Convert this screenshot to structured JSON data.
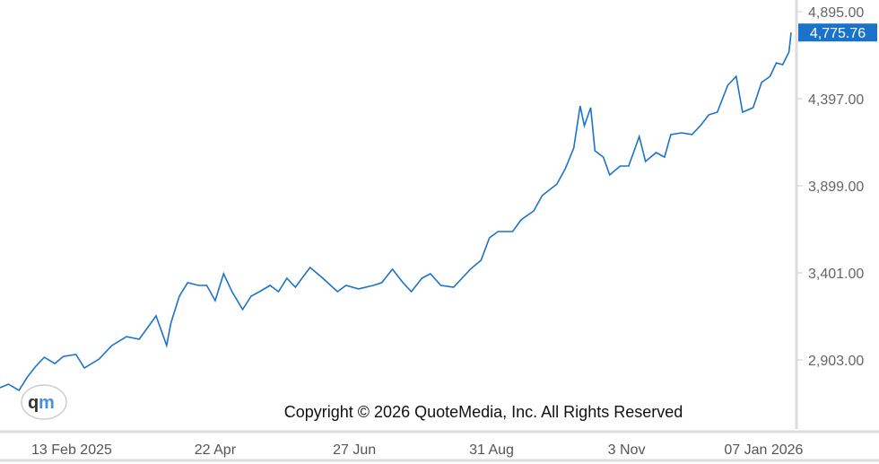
{
  "chart_data": {
    "type": "line",
    "title": "",
    "xlabel": "",
    "ylabel": "",
    "x_range": [
      "2025-01-10",
      "2026-01-20"
    ],
    "y_ticks": [
      2903,
      3401,
      3899,
      4397,
      4895
    ],
    "y_tick_labels": [
      "2,903.00",
      "3,401.00",
      "3,899.00",
      "4,397.00",
      "4,895.00"
    ],
    "x_ticks": [
      "2025-02-13",
      "2025-04-22",
      "2025-06-27",
      "2025-08-31",
      "2025-11-03",
      "2026-01-07"
    ],
    "x_tick_labels": [
      "13 Feb 2025",
      "22 Apr",
      "27 Jun",
      "31 Aug",
      "3 Nov",
      "07 Jan 2026"
    ],
    "grid": false,
    "line_color": "#1a73c8",
    "last_value": 4775.76,
    "last_value_label": "4,775.76",
    "last_value_color": "#1a73c8",
    "x": [
      "2025-01-10",
      "2025-01-14",
      "2025-01-19",
      "2025-01-23",
      "2025-01-27",
      "2025-01-31",
      "2025-02-05",
      "2025-02-09",
      "2025-02-15",
      "2025-02-19",
      "2025-02-26",
      "2025-03-04",
      "2025-03-11",
      "2025-03-17",
      "2025-03-21",
      "2025-03-25",
      "2025-03-30",
      "2025-04-01",
      "2025-04-05",
      "2025-04-09",
      "2025-04-14",
      "2025-04-18",
      "2025-04-22",
      "2025-04-26",
      "2025-04-30",
      "2025-05-05",
      "2025-05-09",
      "2025-05-13",
      "2025-05-18",
      "2025-05-22",
      "2025-05-26",
      "2025-05-30",
      "2025-06-06",
      "2025-06-12",
      "2025-06-19",
      "2025-06-23",
      "2025-06-29",
      "2025-07-06",
      "2025-07-10",
      "2025-07-15",
      "2025-07-20",
      "2025-07-24",
      "2025-07-29",
      "2025-08-02",
      "2025-08-07",
      "2025-08-13",
      "2025-08-17",
      "2025-08-21",
      "2025-08-26",
      "2025-08-30",
      "2025-09-03",
      "2025-09-10",
      "2025-09-14",
      "2025-09-20",
      "2025-09-24",
      "2025-10-01",
      "2025-10-05",
      "2025-10-09",
      "2025-10-12",
      "2025-10-14",
      "2025-10-17",
      "2025-10-19",
      "2025-10-23",
      "2025-10-26",
      "2025-10-31",
      "2025-11-04",
      "2025-11-09",
      "2025-11-12",
      "2025-11-17",
      "2025-11-21",
      "2025-11-24",
      "2025-11-29",
      "2025-12-04",
      "2025-12-08",
      "2025-12-12",
      "2025-12-16",
      "2025-12-21",
      "2025-12-25",
      "2025-12-28",
      "2026-01-02",
      "2026-01-06",
      "2026-01-10",
      "2026-01-13",
      "2026-01-16",
      "2026-01-19",
      "2026-01-20"
    ],
    "values": [
      2744,
      2764,
      2729,
      2806,
      2867,
      2918,
      2882,
      2923,
      2934,
      2857,
      2908,
      2985,
      3036,
      3021,
      3088,
      3155,
      2985,
      3113,
      3267,
      3345,
      3329,
      3329,
      3242,
      3396,
      3293,
      3191,
      3267,
      3293,
      3329,
      3293,
      3370,
      3319,
      3432,
      3370,
      3293,
      3329,
      3309,
      3329,
      3345,
      3422,
      3345,
      3293,
      3370,
      3396,
      3329,
      3319,
      3370,
      3422,
      3473,
      3601,
      3637,
      3637,
      3704,
      3755,
      3843,
      3909,
      3997,
      4115,
      4356,
      4243,
      4346,
      4099,
      4063,
      3961,
      4012,
      4012,
      4181,
      4038,
      4089,
      4063,
      4192,
      4202,
      4192,
      4243,
      4305,
      4320,
      4474,
      4525,
      4320,
      4346,
      4490,
      4525,
      4602,
      4592,
      4664,
      4775.76
    ]
  },
  "copyright": "Copyright © 2026 QuoteMedia, Inc. All Rights Reserved",
  "logo": {
    "text": "qm"
  }
}
